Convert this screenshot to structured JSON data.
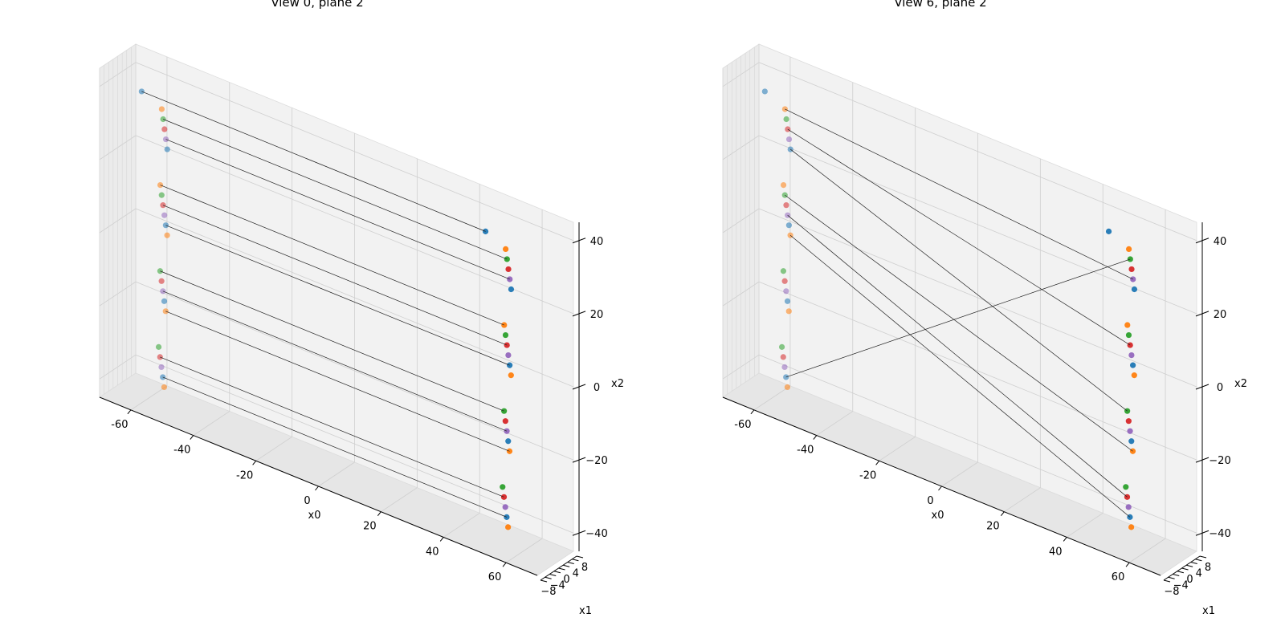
{
  "chart_data": [
    {
      "type": "scatter",
      "projection": "3d",
      "title": "View 0, plane 2",
      "xlabel": "x0",
      "ylabel": "x1",
      "zlabel": "x2",
      "xlim": [
        -70,
        70
      ],
      "ylim": [
        -8,
        8
      ],
      "zlim": [
        -45,
        45
      ],
      "xticks": [
        -60,
        -40,
        -20,
        0,
        20,
        40,
        60
      ],
      "yticks": [
        -8,
        -6,
        -4,
        -2,
        0,
        2,
        4,
        6,
        8
      ],
      "zticks": [
        -40,
        -20,
        0,
        20,
        40
      ],
      "grid": true,
      "series_colors": [
        "#1f77b4",
        "#ff7f0e",
        "#2ca02c",
        "#d62728",
        "#9467bd"
      ],
      "cluster_x": [
        -55,
        55
      ],
      "z_levels": [
        42,
        38,
        34,
        30,
        26,
        22,
        18,
        14,
        10,
        6,
        2,
        -2,
        -6,
        -10,
        -14,
        -18,
        -22,
        -26,
        -30,
        -34,
        -38,
        -42
      ],
      "lines": [
        [
          0,
          0
        ],
        [
          2,
          2
        ],
        [
          4,
          4
        ],
        [
          6,
          6
        ],
        [
          8,
          8
        ],
        [
          10,
          10
        ],
        [
          12,
          12
        ],
        [
          14,
          14
        ],
        [
          16,
          16
        ],
        [
          18,
          18
        ],
        [
          20,
          20
        ]
      ]
    },
    {
      "type": "scatter",
      "projection": "3d",
      "title": "View 6, plane 2",
      "xlabel": "x0",
      "ylabel": "x1",
      "zlabel": "x2",
      "xlim": [
        -70,
        70
      ],
      "ylim": [
        -8,
        8
      ],
      "zlim": [
        -45,
        45
      ],
      "xticks": [
        -60,
        -40,
        -20,
        0,
        20,
        40,
        60
      ],
      "yticks": [
        -8,
        -6,
        -4,
        -2,
        0,
        2,
        4,
        6,
        8
      ],
      "zticks": [
        -40,
        -20,
        0,
        20,
        40
      ],
      "grid": true,
      "series_colors": [
        "#1f77b4",
        "#ff7f0e",
        "#2ca02c",
        "#d62728",
        "#9467bd"
      ],
      "cluster_x": [
        -55,
        55
      ],
      "z_levels": [
        42,
        38,
        34,
        30,
        26,
        22,
        18,
        14,
        10,
        6,
        2,
        -2,
        -6,
        -10,
        -14,
        -18,
        -22,
        -26,
        -30,
        -34,
        -38,
        -42
      ],
      "lines": [
        [
          20,
          2
        ],
        [
          1,
          4
        ],
        [
          3,
          8
        ],
        [
          5,
          12
        ],
        [
          7,
          16
        ],
        [
          9,
          18
        ],
        [
          11,
          20
        ]
      ]
    }
  ]
}
